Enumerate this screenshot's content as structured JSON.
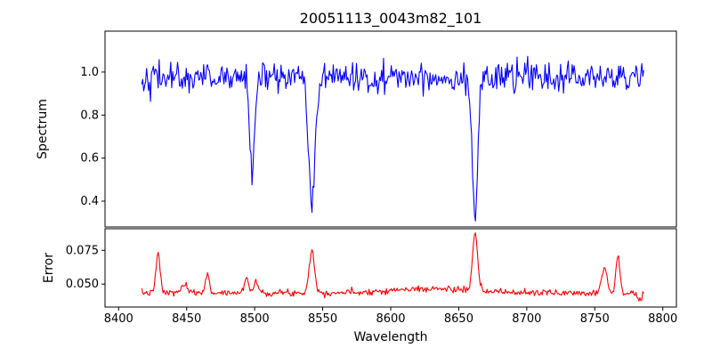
{
  "chart_data": [
    {
      "type": "line",
      "panel": "spectrum",
      "title": "20051113_0043m82_101",
      "ylabel": "Spectrum",
      "color": "#0000ff",
      "xlim": [
        8390,
        8810
      ],
      "ylim": [
        0.28,
        1.19
      ],
      "yticks": [
        0.4,
        0.6,
        0.8,
        1.0
      ],
      "yticklabels": [
        "0.4",
        "0.6",
        "0.8",
        "1.0"
      ],
      "x_start": 8417,
      "x_end": 8786,
      "n_points": 520,
      "continuum": 0.975,
      "noise_sigma": 0.034,
      "seed": 42,
      "absorption_lines": [
        {
          "center": 8498,
          "depth": 0.45,
          "width": 1.7
        },
        {
          "center": 8542,
          "depth": 0.62,
          "width": 2.3
        },
        {
          "center": 8662,
          "depth": 0.64,
          "width": 2.0
        }
      ],
      "grid": false,
      "legend": "none"
    },
    {
      "type": "line",
      "panel": "error",
      "ylabel": "Error",
      "xlabel": "Wavelength",
      "color": "#ff0000",
      "xlim": [
        8390,
        8810
      ],
      "ylim": [
        0.033,
        0.091
      ],
      "yticks": [
        0.05,
        0.075
      ],
      "yticklabels": [
        "0.050",
        "0.075"
      ],
      "xticks": [
        8400,
        8450,
        8500,
        8550,
        8600,
        8650,
        8700,
        8750,
        8800
      ],
      "xticklabels": [
        "8400",
        "8450",
        "8500",
        "8550",
        "8600",
        "8650",
        "8700",
        "8750",
        "8800"
      ],
      "x_start": 8417,
      "x_end": 8786,
      "n_points": 520,
      "baseline": 0.0435,
      "noise_sigma": 0.0012,
      "seed": 7,
      "peaks": [
        {
          "center": 8429,
          "height": 0.029,
          "width": 1.5
        },
        {
          "center": 8448,
          "height": 0.006,
          "width": 2.0
        },
        {
          "center": 8465,
          "height": 0.013,
          "width": 1.5
        },
        {
          "center": 8494,
          "height": 0.012,
          "width": 1.5
        },
        {
          "center": 8501,
          "height": 0.009,
          "width": 1.5
        },
        {
          "center": 8542,
          "height": 0.031,
          "width": 2.0
        },
        {
          "center": 8630,
          "height": 0.003,
          "width": 30.0
        },
        {
          "center": 8662,
          "height": 0.042,
          "width": 1.8
        },
        {
          "center": 8757,
          "height": 0.019,
          "width": 2.0
        },
        {
          "center": 8767,
          "height": 0.026,
          "width": 1.5
        },
        {
          "center": 8783,
          "height": -0.006,
          "width": 1.5
        }
      ],
      "grid": false,
      "legend": "none"
    }
  ]
}
